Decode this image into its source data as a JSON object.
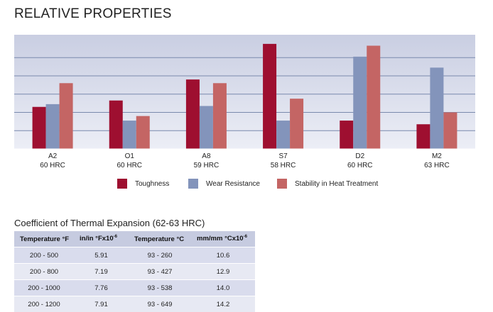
{
  "page": {
    "title": "RELATIVE PROPERTIES"
  },
  "chart_data": {
    "type": "bar",
    "title": "RELATIVE PROPERTIES",
    "categories": [
      "A2",
      "O1",
      "A8",
      "S7",
      "D2",
      "M2"
    ],
    "category_sublabels": [
      "60 HRC",
      "60 HRC",
      "59 HRC",
      "58 HRC",
      "60 HRC",
      "63 HRC"
    ],
    "series": [
      {
        "name": "Toughness",
        "color": "#9e0f30",
        "values": [
          4.6,
          5.3,
          7.6,
          11.5,
          3.1,
          2.7
        ]
      },
      {
        "name": "Wear Resistance",
        "color": "#8394bb",
        "values": [
          4.9,
          3.1,
          4.7,
          3.1,
          10.1,
          8.9
        ]
      },
      {
        "name": "Stability in Heat Treatment",
        "color": "#c46564",
        "values": [
          7.2,
          3.6,
          7.2,
          5.5,
          11.3,
          4.0
        ]
      }
    ],
    "ylim": [
      0,
      12.5
    ],
    "y_gridlines": [
      2,
      4,
      6,
      8,
      10
    ],
    "grid": true,
    "legend": "bottom",
    "xlabel": "",
    "ylabel": ""
  },
  "table": {
    "title": "Coefficient of Thermal Expansion (62-63 HRC)",
    "headers": [
      {
        "main": "Temperature °F",
        "sup": ""
      },
      {
        "main": "in/in °Fx10",
        "sup": "-6"
      },
      {
        "main": "Temperature °C",
        "sup": ""
      },
      {
        "main": "mm/mm °Cx10",
        "sup": "-6"
      }
    ],
    "rows": [
      [
        "200 - 500",
        "5.91",
        "93 - 260",
        "10.6"
      ],
      [
        "200 - 800",
        "7.19",
        "93 - 427",
        "12.9"
      ],
      [
        "200 - 1000",
        "7.76",
        "93 - 538",
        "14.0"
      ],
      [
        "200 - 1200",
        "7.91",
        "93 - 649",
        "14.2"
      ]
    ]
  }
}
